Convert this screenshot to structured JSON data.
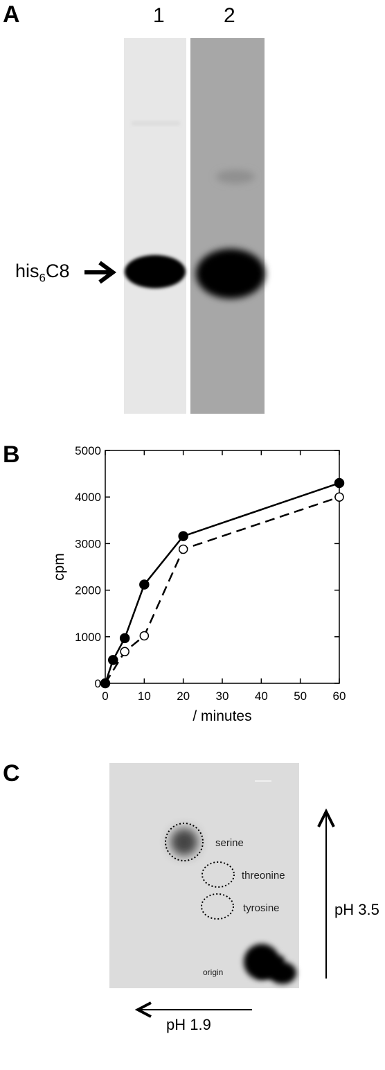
{
  "panel_a": {
    "letter": "A",
    "lanes": [
      "1",
      "2"
    ],
    "protein_label": {
      "main": "his",
      "sub": "6",
      "suffix": "C8"
    }
  },
  "panel_b": {
    "letter": "B"
  },
  "panel_c": {
    "letter": "C",
    "spots": [
      "serine",
      "threonine",
      "tyrosine",
      "origin"
    ],
    "ph_vertical": "pH 3.5",
    "ph_horizontal": "pH 1.9"
  },
  "chart_data": {
    "type": "line",
    "title": "",
    "xlabel": "/ minutes",
    "ylabel": "cpm",
    "xlim": [
      0,
      60
    ],
    "ylim": [
      0,
      5000
    ],
    "xticks": [
      0,
      10,
      20,
      30,
      40,
      50,
      60
    ],
    "yticks": [
      0,
      1000,
      2000,
      3000,
      4000,
      5000
    ],
    "grid": false,
    "series": [
      {
        "marker": "filled-circle",
        "line": "solid",
        "x": [
          0,
          2,
          5,
          10,
          20,
          60
        ],
        "y": [
          0,
          500,
          970,
          2120,
          3160,
          4300
        ]
      },
      {
        "marker": "open-circle",
        "line": "dashed",
        "x": [
          0,
          5,
          10,
          20,
          60
        ],
        "y": [
          0,
          680,
          1020,
          2880,
          4000
        ]
      }
    ]
  }
}
